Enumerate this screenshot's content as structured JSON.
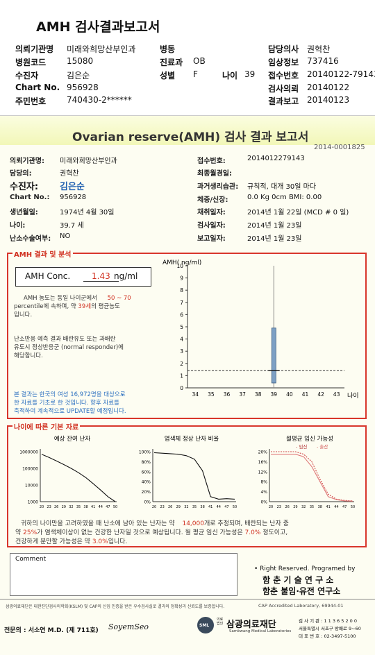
{
  "header": {
    "title": "AMH 검사결과보고서",
    "rows": [
      {
        "l1": "의뢰기관명",
        "v1": "미래와희망산부인과",
        "l2": "병동",
        "v2": "",
        "l3": "담당의사",
        "v3": "권혁찬"
      },
      {
        "l1": "병원코드",
        "v1": "15080",
        "l2": "진료과",
        "v2": "OB",
        "l3": "임상정보",
        "v3": "737416"
      },
      {
        "l1": "수진자",
        "v1": "김은순",
        "l2": "성별",
        "v2": "F",
        "l2b": "나이",
        "v2b": "39",
        "l3": "접수번호",
        "v3": "20140122-79143"
      },
      {
        "l1": "Chart No.",
        "v1": "956928",
        "l2": "",
        "v2": "",
        "l3": "검사의뢰",
        "v3": "20140122"
      },
      {
        "l1": "주민번호",
        "v1": "740430-2******",
        "l2": "",
        "v2": "",
        "l3": "결과보고",
        "v3": "20140123"
      }
    ]
  },
  "report": {
    "title": "Ovarian reserve(AMH) 검사 결과 보고서",
    "doc_no": "2014-0001825",
    "left": [
      {
        "label": "의뢰기관명:",
        "value": "미래와희망산부인과"
      },
      {
        "label": "담당의:",
        "value": "권혁찬"
      },
      {
        "label": "수진자:",
        "value": "김은순"
      },
      {
        "label": "Chart No.:",
        "value": "956928"
      },
      {
        "label": "생년월일:",
        "value": "1974년 4월 30일"
      },
      {
        "label": "나이:",
        "value": "39.7 세"
      },
      {
        "label": "난소수술여부:",
        "value": "NO"
      }
    ],
    "right": [
      {
        "label": "접수번호:",
        "value": "2014012279143"
      },
      {
        "label": "최종월경일:",
        "value": ""
      },
      {
        "label": "과거생리습관:",
        "value": "규칙적, 대개 30일 마다"
      },
      {
        "label": "체중/신장:",
        "value": "0.0 Kg      0cm   BMI:  0.00"
      },
      {
        "label": "채취일자:",
        "value": "2014년 1월 22일   (MCD # 0 일)"
      },
      {
        "label": "검사일자:",
        "value": "2014년 1월 23일"
      },
      {
        "label": "보고일자:",
        "value": "2014년 1월 23일"
      }
    ]
  },
  "amh": {
    "section_title": "AMH 결과 및 분석",
    "conc_label": "AMH Conc.",
    "conc_value": "1.43",
    "conc_unit": "ng/ml",
    "desc1_a": "AMH 농도는 동일 나이군에서",
    "desc1_range": "50 ~ 70",
    "desc1_b": "percentile에 속하며, 약",
    "desc1_age": "39세",
    "desc1_c": "의 평균농도",
    "desc1_d": "입니다.",
    "desc2_1": "난소반응 예측 결과 배란유도 또는 과배란",
    "desc2_2": "유도시 정상반응군 (normal responder)에",
    "desc2_3": "해당합니다.",
    "note1": "본 결과는 한국의 여성 16,972명을 대상으로",
    "note2": "한 자료를 기초로 한 것입니다. 향후 자료를",
    "note3": "축적하여 계속적으로 UPDATE할 예정입니다."
  },
  "chart_data": [
    {
      "type": "bar",
      "title": "",
      "ylabel": "AMH( ng/ml)",
      "xlabel": "나이",
      "ylim": [
        0,
        10
      ],
      "y_ticks": [
        "0",
        "1",
        "2",
        "3",
        "4",
        "5",
        "6",
        "7",
        "8",
        "9",
        "10"
      ],
      "x_ticks": [
        "34",
        "35",
        "36",
        "37",
        "38",
        "39",
        "40",
        "41",
        "42",
        "43"
      ],
      "range_bar": {
        "x": 39,
        "low": 0.4,
        "high": 4.9
      },
      "result": {
        "x": 39,
        "y": 1.43
      },
      "grid": false
    },
    {
      "type": "line",
      "title": "예상 잔여 난자",
      "scale": "log",
      "y_ticks": [
        "1000000",
        "100000",
        "10000",
        "1000"
      ],
      "x_ticks": [
        "20",
        "23",
        "26",
        "29",
        "32",
        "35",
        "38",
        "41",
        "44",
        "47",
        "50"
      ],
      "x": [
        20,
        23,
        26,
        29,
        32,
        35,
        38,
        41,
        44,
        47,
        50
      ],
      "y": [
        700000,
        450000,
        280000,
        170000,
        100000,
        55000,
        28000,
        12000,
        5000,
        2000,
        1000
      ]
    },
    {
      "type": "line",
      "title": "염색체 정상 난자 비율",
      "y_ticks": [
        "100%",
        "80%",
        "60%",
        "40%",
        "20%",
        "0%"
      ],
      "x_ticks": [
        "20",
        "23",
        "26",
        "29",
        "32",
        "35",
        "38",
        "41",
        "44",
        "47",
        "50"
      ],
      "x": [
        20,
        23,
        26,
        29,
        32,
        35,
        38,
        41,
        44,
        47,
        50
      ],
      "y": [
        98,
        97,
        96,
        95,
        92,
        85,
        62,
        10,
        5,
        6,
        5
      ]
    },
    {
      "type": "line",
      "title": "월평균 임신 가능성",
      "legend": [
        "임신",
        "출산"
      ],
      "y_ticks": [
        "20%",
        "16%",
        "12%",
        "8%",
        "4%",
        "0%"
      ],
      "x_ticks": [
        "20",
        "23",
        "26",
        "29",
        "32",
        "35",
        "38",
        "41",
        "44",
        "47",
        "50"
      ],
      "series": [
        {
          "name": "임신",
          "x": [
            20,
            23,
            26,
            29,
            32,
            35,
            38,
            41,
            44,
            47,
            50
          ],
          "values": [
            20,
            20,
            20,
            20,
            19,
            16,
            9,
            3,
            1,
            0.5,
            0.3
          ]
        },
        {
          "name": "출산",
          "x": [
            20,
            23,
            26,
            29,
            32,
            35,
            38,
            41,
            44,
            47,
            50
          ],
          "values": [
            19,
            19,
            19,
            19,
            18,
            14,
            8,
            2,
            0.8,
            0.3,
            0.2
          ]
        }
      ]
    }
  ],
  "age": {
    "section_title": "나이에 따른 기본 자료",
    "sum_a": "귀하의 나이만을 고려하였을 때 난소에 남아 있는 난자는 약",
    "sum_eggs": "14,000",
    "sum_b": "개로 추정되며, 배란되는 난자 중",
    "sum_c": "약",
    "sum_pct": "25%",
    "sum_d": "가 염색체이상이 없는 건강한 난자일 것으로 예상됩니다. 월 평균 임신 가능성은",
    "sum_preg": "7.0%",
    "sum_e": "정도이고,",
    "sum_f": "건강하게 분만할 가능성은 약",
    "sum_birth": "3.0%",
    "sum_g": "입니다."
  },
  "comment": {
    "label": "Comment"
  },
  "credits": {
    "rights": "• Right Reserved. Programed by",
    "lab1": "함 춘 기 술 연 구 소",
    "lab2": "함춘 불임·유전 연구소"
  },
  "footer": {
    "fine": "삼광의료재단은 대한진단검사의학회(KSLM) 및 CAP의 신임 인증을 받은 우수검사실로 결과의 정확성과 신뢰도를 보증합니다.",
    "cap": "CAP Accredited Laboratory, 69944-01",
    "specialist": "전문의 : 서소연 M.D. (제 711호)",
    "signature": "SoyemSeo",
    "org_small": "의료법인",
    "org": "삼광의료재단",
    "org_en": "Samkwang Medical Laboratories",
    "code": "검 사 기 관 : 1 1 3 6 5 2 0 0",
    "address": "서울특별시 서초구 방배로 9~60",
    "phone": "대 표 번 호 : 02-3497-5100",
    "logo": "SML"
  }
}
